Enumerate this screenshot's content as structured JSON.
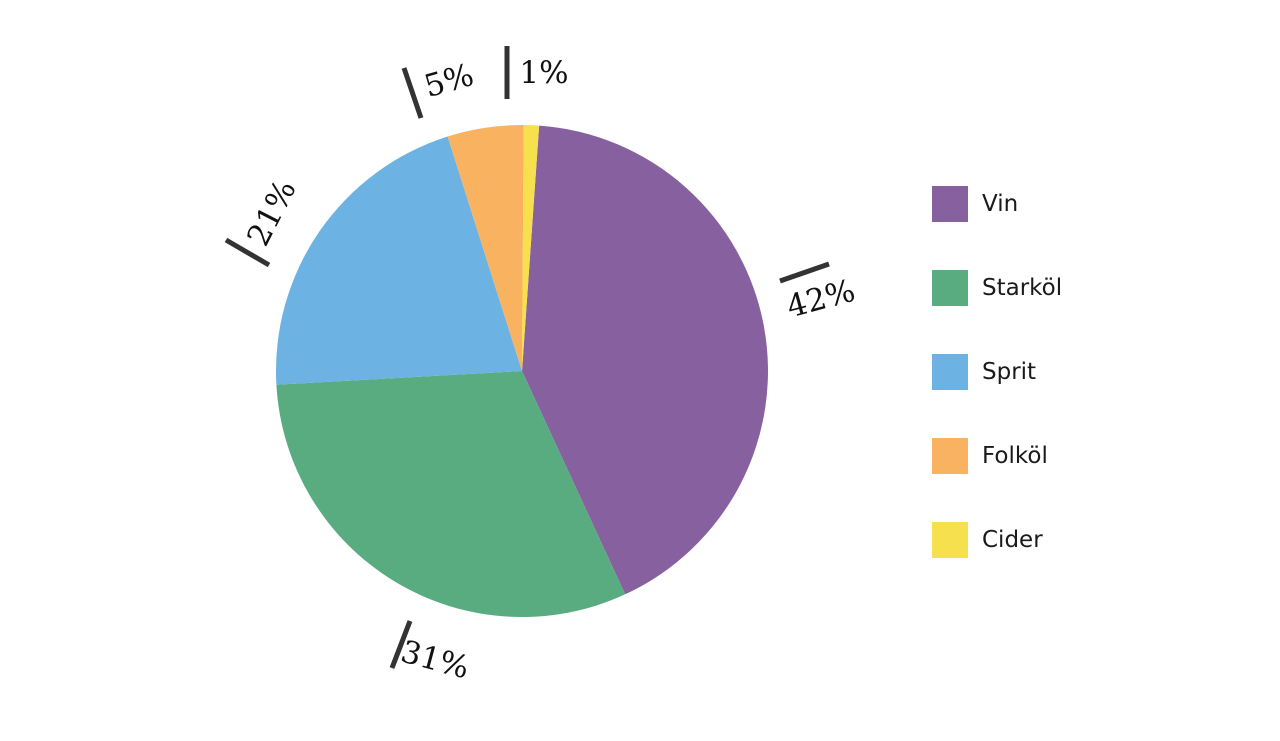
{
  "chart_data": {
    "type": "pie",
    "title": "",
    "categories": [
      "Vin",
      "Starköl",
      "Sprit",
      "Folköl",
      "Cider"
    ],
    "values": [
      42,
      31,
      21,
      5,
      1
    ],
    "labels": [
      "42%",
      "31%",
      "21%",
      "5%",
      "1%"
    ],
    "colors": [
      "#8760A0",
      "#59AB80",
      "#6CB2E2",
      "#F9B25F",
      "#F6E04E"
    ],
    "start_angle_deg": 4,
    "legend_position": "right"
  }
}
